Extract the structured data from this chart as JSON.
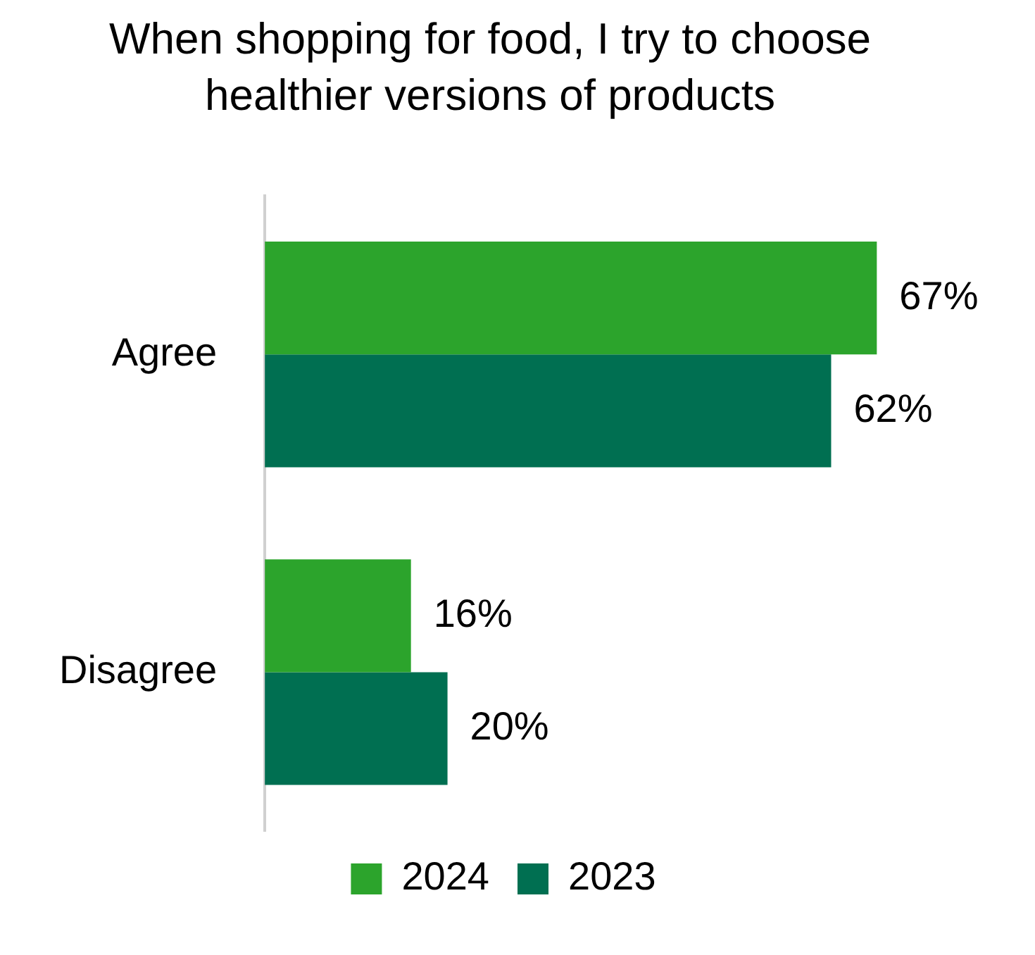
{
  "chart_data": {
    "type": "bar",
    "orientation": "horizontal",
    "title": "When shopping for food, I try to choose healthier versions of products",
    "categories": [
      "Agree",
      "Disagree"
    ],
    "series": [
      {
        "name": "2024",
        "color": "#2ca42c",
        "values": [
          67,
          16
        ],
        "value_labels": [
          "67%",
          "16%"
        ]
      },
      {
        "name": "2023",
        "color": "#006f51",
        "values": [
          62,
          20
        ],
        "value_labels": [
          "62%",
          "20%"
        ]
      }
    ],
    "legend": "bottom",
    "tick_labels": "y"
  }
}
